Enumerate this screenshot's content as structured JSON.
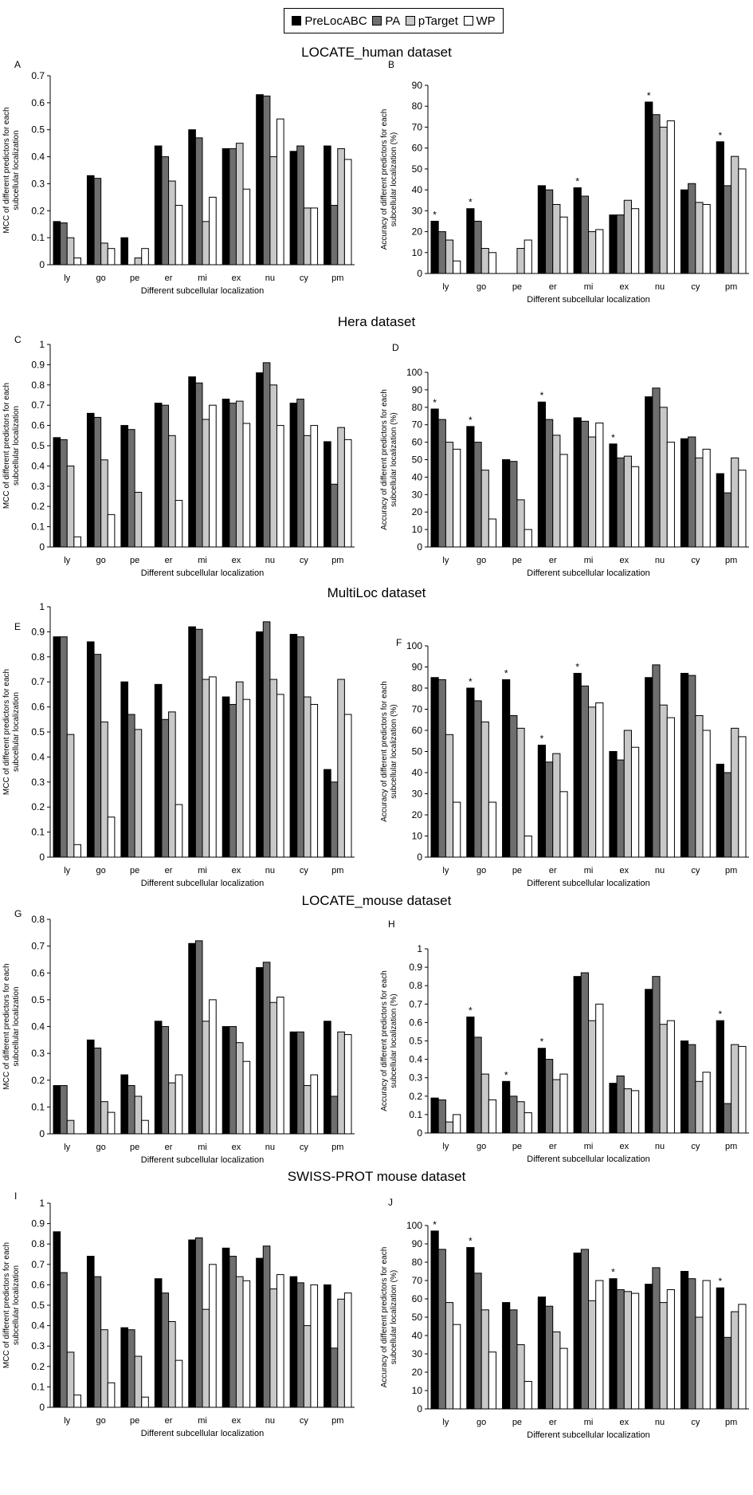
{
  "legend": [
    {
      "name": "PreLocABC",
      "color": "#000000"
    },
    {
      "name": "PA",
      "color": "#6e6e6e"
    },
    {
      "name": "pTarget",
      "color": "#c8c8c8"
    },
    {
      "name": "WP",
      "color": "#ffffff"
    }
  ],
  "datasets": [
    "LOCATE_human dataset",
    "Hera dataset",
    "MultiLoc dataset",
    "LOCATE_mouse dataset",
    "SWISS-PROT mouse dataset"
  ],
  "chart_data": [
    {
      "type": "bar",
      "panel": "A",
      "categories": [
        "ly",
        "go",
        "pe",
        "er",
        "mi",
        "ex",
        "nu",
        "cy",
        "pm"
      ],
      "ylim": [
        0,
        0.7
      ],
      "yticks": [
        "0",
        "0.1",
        "0.2",
        "0.3",
        "0.4",
        "0.5",
        "0.6",
        "0.7"
      ],
      "ylabel": "MCC of different predictors for each\nsubcellular localization",
      "xlabel": "Different subcellular localization",
      "stars": [],
      "series": [
        {
          "name": "PreLocABC",
          "values": [
            0.16,
            0.33,
            0.1,
            0.44,
            0.5,
            0.43,
            0.63,
            0.42,
            0.44
          ]
        },
        {
          "name": "PA",
          "values": [
            0.155,
            0.32,
            0,
            0.4,
            0.47,
            0.43,
            0.625,
            0.44,
            0.22
          ]
        },
        {
          "name": "pTarget",
          "values": [
            0.1,
            0.08,
            0.025,
            0.31,
            0.16,
            0.45,
            0.4,
            0.21,
            0.43
          ]
        },
        {
          "name": "WP",
          "values": [
            0.025,
            0.06,
            0.06,
            0.22,
            0.25,
            0.28,
            0.54,
            0.21,
            0.39
          ]
        }
      ]
    },
    {
      "type": "bar",
      "panel": "B",
      "categories": [
        "ly",
        "go",
        "pe",
        "er",
        "mi",
        "ex",
        "nu",
        "cy",
        "pm"
      ],
      "ylim": [
        0,
        90
      ],
      "yticks": [
        "0",
        "10",
        "20",
        "30",
        "40",
        "50",
        "60",
        "70",
        "80",
        "90"
      ],
      "ylabel": "Accuracy of different predictors for each\nsubcellular localization (%)",
      "xlabel": "Different subcellular localization",
      "stars": [
        0,
        1,
        4,
        6,
        8
      ],
      "series": [
        {
          "name": "PreLocABC",
          "values": [
            25,
            31,
            0,
            42,
            41,
            28,
            82,
            40,
            63
          ]
        },
        {
          "name": "PA",
          "values": [
            20,
            25,
            0,
            40,
            37,
            28,
            76,
            43,
            42
          ]
        },
        {
          "name": "pTarget",
          "values": [
            16,
            12,
            12,
            33,
            20,
            35,
            70,
            34,
            56
          ]
        },
        {
          "name": "WP",
          "values": [
            6,
            10,
            16,
            27,
            21,
            31,
            73,
            33,
            50
          ]
        }
      ]
    },
    {
      "type": "bar",
      "panel": "C",
      "categories": [
        "ly",
        "go",
        "pe",
        "er",
        "mi",
        "ex",
        "nu",
        "cy",
        "pm"
      ],
      "ylim": [
        0,
        1
      ],
      "yticks": [
        "0",
        "0.1",
        "0.2",
        "0.3",
        "0.4",
        "0.5",
        "0.6",
        "0.7",
        "0.8",
        "0.9",
        "1"
      ],
      "ylabel": "MCC of different predictors for each\nsubcellular localization",
      "xlabel": "Different subcellular localization",
      "stars": [],
      "series": [
        {
          "name": "PreLocABC",
          "values": [
            0.54,
            0.66,
            0.6,
            0.71,
            0.84,
            0.73,
            0.86,
            0.71,
            0.52
          ]
        },
        {
          "name": "PA",
          "values": [
            0.53,
            0.64,
            0.58,
            0.7,
            0.81,
            0.71,
            0.91,
            0.73,
            0.31
          ]
        },
        {
          "name": "pTarget",
          "values": [
            0.4,
            0.43,
            0.27,
            0.55,
            0.63,
            0.72,
            0.8,
            0.55,
            0.59
          ]
        },
        {
          "name": "WP",
          "values": [
            0.05,
            0.16,
            0,
            0.23,
            0.7,
            0.61,
            0.6,
            0.6,
            0.53
          ]
        }
      ]
    },
    {
      "type": "bar",
      "panel": "D",
      "categories": [
        "ly",
        "go",
        "pe",
        "er",
        "mi",
        "ex",
        "nu",
        "cy",
        "pm"
      ],
      "ylim": [
        0,
        100
      ],
      "yticks": [
        "0",
        "10",
        "20",
        "30",
        "40",
        "50",
        "60",
        "70",
        "80",
        "90",
        "100"
      ],
      "ylabel": "Accuracy of different predictors for each\nsubcellular localization (%)",
      "xlabel": "Different subcellular localization",
      "stars": [
        0,
        1,
        3,
        5
      ],
      "series": [
        {
          "name": "PreLocABC",
          "values": [
            79,
            69,
            50,
            83,
            74,
            59,
            86,
            62,
            42
          ]
        },
        {
          "name": "PA",
          "values": [
            73,
            60,
            49,
            73,
            72,
            51,
            91,
            63,
            31
          ]
        },
        {
          "name": "pTarget",
          "values": [
            60,
            44,
            27,
            64,
            63,
            52,
            80,
            51,
            51
          ]
        },
        {
          "name": "WP",
          "values": [
            56,
            16,
            10,
            53,
            71,
            46,
            60,
            56,
            44
          ]
        }
      ]
    },
    {
      "type": "bar",
      "panel": "E",
      "categories": [
        "ly",
        "go",
        "pe",
        "er",
        "mi",
        "ex",
        "nu",
        "cy",
        "pm"
      ],
      "ylim": [
        0,
        1
      ],
      "yticks": [
        "0",
        "0.1",
        "0.2",
        "0.3",
        "0.4",
        "0.5",
        "0.6",
        "0.7",
        "0.8",
        "0.9",
        "1"
      ],
      "ylabel": "MCC of different predictors for each\nsubcellular localization",
      "xlabel": "Different subcellular localization",
      "stars": [],
      "series": [
        {
          "name": "PreLocABC",
          "values": [
            0.88,
            0.86,
            0.7,
            0.69,
            0.92,
            0.64,
            0.9,
            0.89,
            0.35
          ]
        },
        {
          "name": "PA",
          "values": [
            0.88,
            0.81,
            0.57,
            0.55,
            0.91,
            0.61,
            0.94,
            0.88,
            0.3
          ]
        },
        {
          "name": "pTarget",
          "values": [
            0.49,
            0.54,
            0.51,
            0.58,
            0.71,
            0.7,
            0.71,
            0.64,
            0.71
          ]
        },
        {
          "name": "WP",
          "values": [
            0.05,
            0.16,
            0,
            0.21,
            0.72,
            0.63,
            0.65,
            0.61,
            0.57
          ]
        }
      ]
    },
    {
      "type": "bar",
      "panel": "F",
      "categories": [
        "ly",
        "go",
        "pe",
        "er",
        "mi",
        "ex",
        "nu",
        "cy",
        "pm"
      ],
      "ylim": [
        0,
        100
      ],
      "yticks": [
        "0",
        "10",
        "20",
        "30",
        "40",
        "50",
        "60",
        "70",
        "80",
        "90",
        "100"
      ],
      "ylabel": "Accuracy of different predictors for each\nsubcellular localization (%)",
      "xlabel": "Different subcellular localization",
      "stars": [
        1,
        2,
        3,
        4
      ],
      "series": [
        {
          "name": "PreLocABC",
          "values": [
            85,
            80,
            84,
            53,
            87,
            50,
            85,
            87,
            44
          ]
        },
        {
          "name": "PA",
          "values": [
            84,
            74,
            67,
            45,
            81,
            46,
            91,
            86,
            40
          ]
        },
        {
          "name": "pTarget",
          "values": [
            58,
            64,
            61,
            49,
            71,
            60,
            72,
            67,
            61
          ]
        },
        {
          "name": "WP",
          "values": [
            26,
            26,
            10,
            31,
            73,
            52,
            66,
            60,
            57
          ]
        }
      ]
    },
    {
      "type": "bar",
      "panel": "G",
      "categories": [
        "ly",
        "go",
        "pe",
        "er",
        "mi",
        "ex",
        "nu",
        "cy",
        "pm"
      ],
      "ylim": [
        0,
        0.8
      ],
      "yticks": [
        "0",
        "0.1",
        "0.2",
        "0.3",
        "0.4",
        "0.5",
        "0.6",
        "0.7",
        "0.8"
      ],
      "ylabel": "MCC of different predictors for each\nsubcellular localization",
      "xlabel": "Different subcellular localization",
      "stars": [],
      "series": [
        {
          "name": "PreLocABC",
          "values": [
            0.18,
            0.35,
            0.22,
            0.42,
            0.71,
            0.4,
            0.62,
            0.38,
            0.42
          ]
        },
        {
          "name": "PA",
          "values": [
            0.18,
            0.32,
            0.18,
            0.4,
            0.72,
            0.4,
            0.64,
            0.38,
            0.14
          ]
        },
        {
          "name": "pTarget",
          "values": [
            0.05,
            0.12,
            0.14,
            0.19,
            0.42,
            0.34,
            0.49,
            0.18,
            0.38
          ]
        },
        {
          "name": "WP",
          "values": [
            0,
            0.08,
            0.05,
            0.22,
            0.5,
            0.27,
            0.51,
            0.22,
            0.37
          ]
        }
      ]
    },
    {
      "type": "bar",
      "panel": "H",
      "categories": [
        "ly",
        "go",
        "pe",
        "er",
        "mi",
        "ex",
        "nu",
        "cy",
        "pm"
      ],
      "ylim": [
        0,
        1
      ],
      "yticks": [
        "0",
        "0.1",
        "0.2",
        "0.3",
        "0.4",
        "0.5",
        "0.6",
        "0.7",
        "0.8",
        "0.9",
        "1"
      ],
      "ylabel": "Accuracy of different predictors for each\nsubcellular localization (%)",
      "xlabel": "Different subcellular localization",
      "stars": [
        1,
        2,
        3,
        8
      ],
      "series": [
        {
          "name": "PreLocABC",
          "values": [
            0.19,
            0.63,
            0.28,
            0.46,
            0.85,
            0.27,
            0.78,
            0.5,
            0.61
          ]
        },
        {
          "name": "PA",
          "values": [
            0.18,
            0.52,
            0.2,
            0.4,
            0.87,
            0.31,
            0.85,
            0.48,
            0.16
          ]
        },
        {
          "name": "pTarget",
          "values": [
            0.06,
            0.32,
            0.17,
            0.29,
            0.61,
            0.24,
            0.59,
            0.28,
            0.48
          ]
        },
        {
          "name": "WP",
          "values": [
            0.1,
            0.18,
            0.11,
            0.32,
            0.7,
            0.23,
            0.61,
            0.33,
            0.47
          ]
        }
      ]
    },
    {
      "type": "bar",
      "panel": "I",
      "categories": [
        "ly",
        "go",
        "pe",
        "er",
        "mi",
        "ex",
        "nu",
        "cy",
        "pm"
      ],
      "ylim": [
        0,
        1
      ],
      "yticks": [
        "0",
        "0.1",
        "0.2",
        "0.3",
        "0.4",
        "0.5",
        "0.6",
        "0.7",
        "0.8",
        "0.9",
        "1"
      ],
      "ylabel": "MCC of different predictors for each\nsubcellular localization",
      "xlabel": "Different subcellular localization",
      "stars": [],
      "series": [
        {
          "name": "PreLocABC",
          "values": [
            0.86,
            0.74,
            0.39,
            0.63,
            0.82,
            0.78,
            0.73,
            0.64,
            0.6
          ]
        },
        {
          "name": "PA",
          "values": [
            0.66,
            0.64,
            0.38,
            0.56,
            0.83,
            0.74,
            0.79,
            0.61,
            0.29
          ]
        },
        {
          "name": "pTarget",
          "values": [
            0.27,
            0.38,
            0.25,
            0.42,
            0.48,
            0.64,
            0.58,
            0.4,
            0.53
          ]
        },
        {
          "name": "WP",
          "values": [
            0.06,
            0.12,
            0.05,
            0.23,
            0.7,
            0.62,
            0.65,
            0.6,
            0.56
          ]
        }
      ]
    },
    {
      "type": "bar",
      "panel": "J",
      "categories": [
        "ly",
        "go",
        "pe",
        "er",
        "mi",
        "ex",
        "nu",
        "cy",
        "pm"
      ],
      "ylim": [
        0,
        100
      ],
      "yticks": [
        "0",
        "10",
        "20",
        "30",
        "40",
        "50",
        "60",
        "70",
        "80",
        "90",
        "100"
      ],
      "ylabel": "Accuracy of different predictors for each\nsubcellular localization (%)",
      "xlabel": "Different subcellular localization",
      "stars": [
        0,
        1,
        5,
        8
      ],
      "series": [
        {
          "name": "PreLocABC",
          "values": [
            97,
            88,
            58,
            61,
            85,
            71,
            68,
            75,
            66
          ]
        },
        {
          "name": "PA",
          "values": [
            87,
            74,
            54,
            56,
            87,
            65,
            77,
            71,
            39
          ]
        },
        {
          "name": "pTarget",
          "values": [
            58,
            54,
            35,
            42,
            59,
            64,
            58,
            50,
            53
          ]
        },
        {
          "name": "WP",
          "values": [
            46,
            31,
            15,
            33,
            70,
            63,
            65,
            70,
            57
          ]
        }
      ]
    }
  ]
}
